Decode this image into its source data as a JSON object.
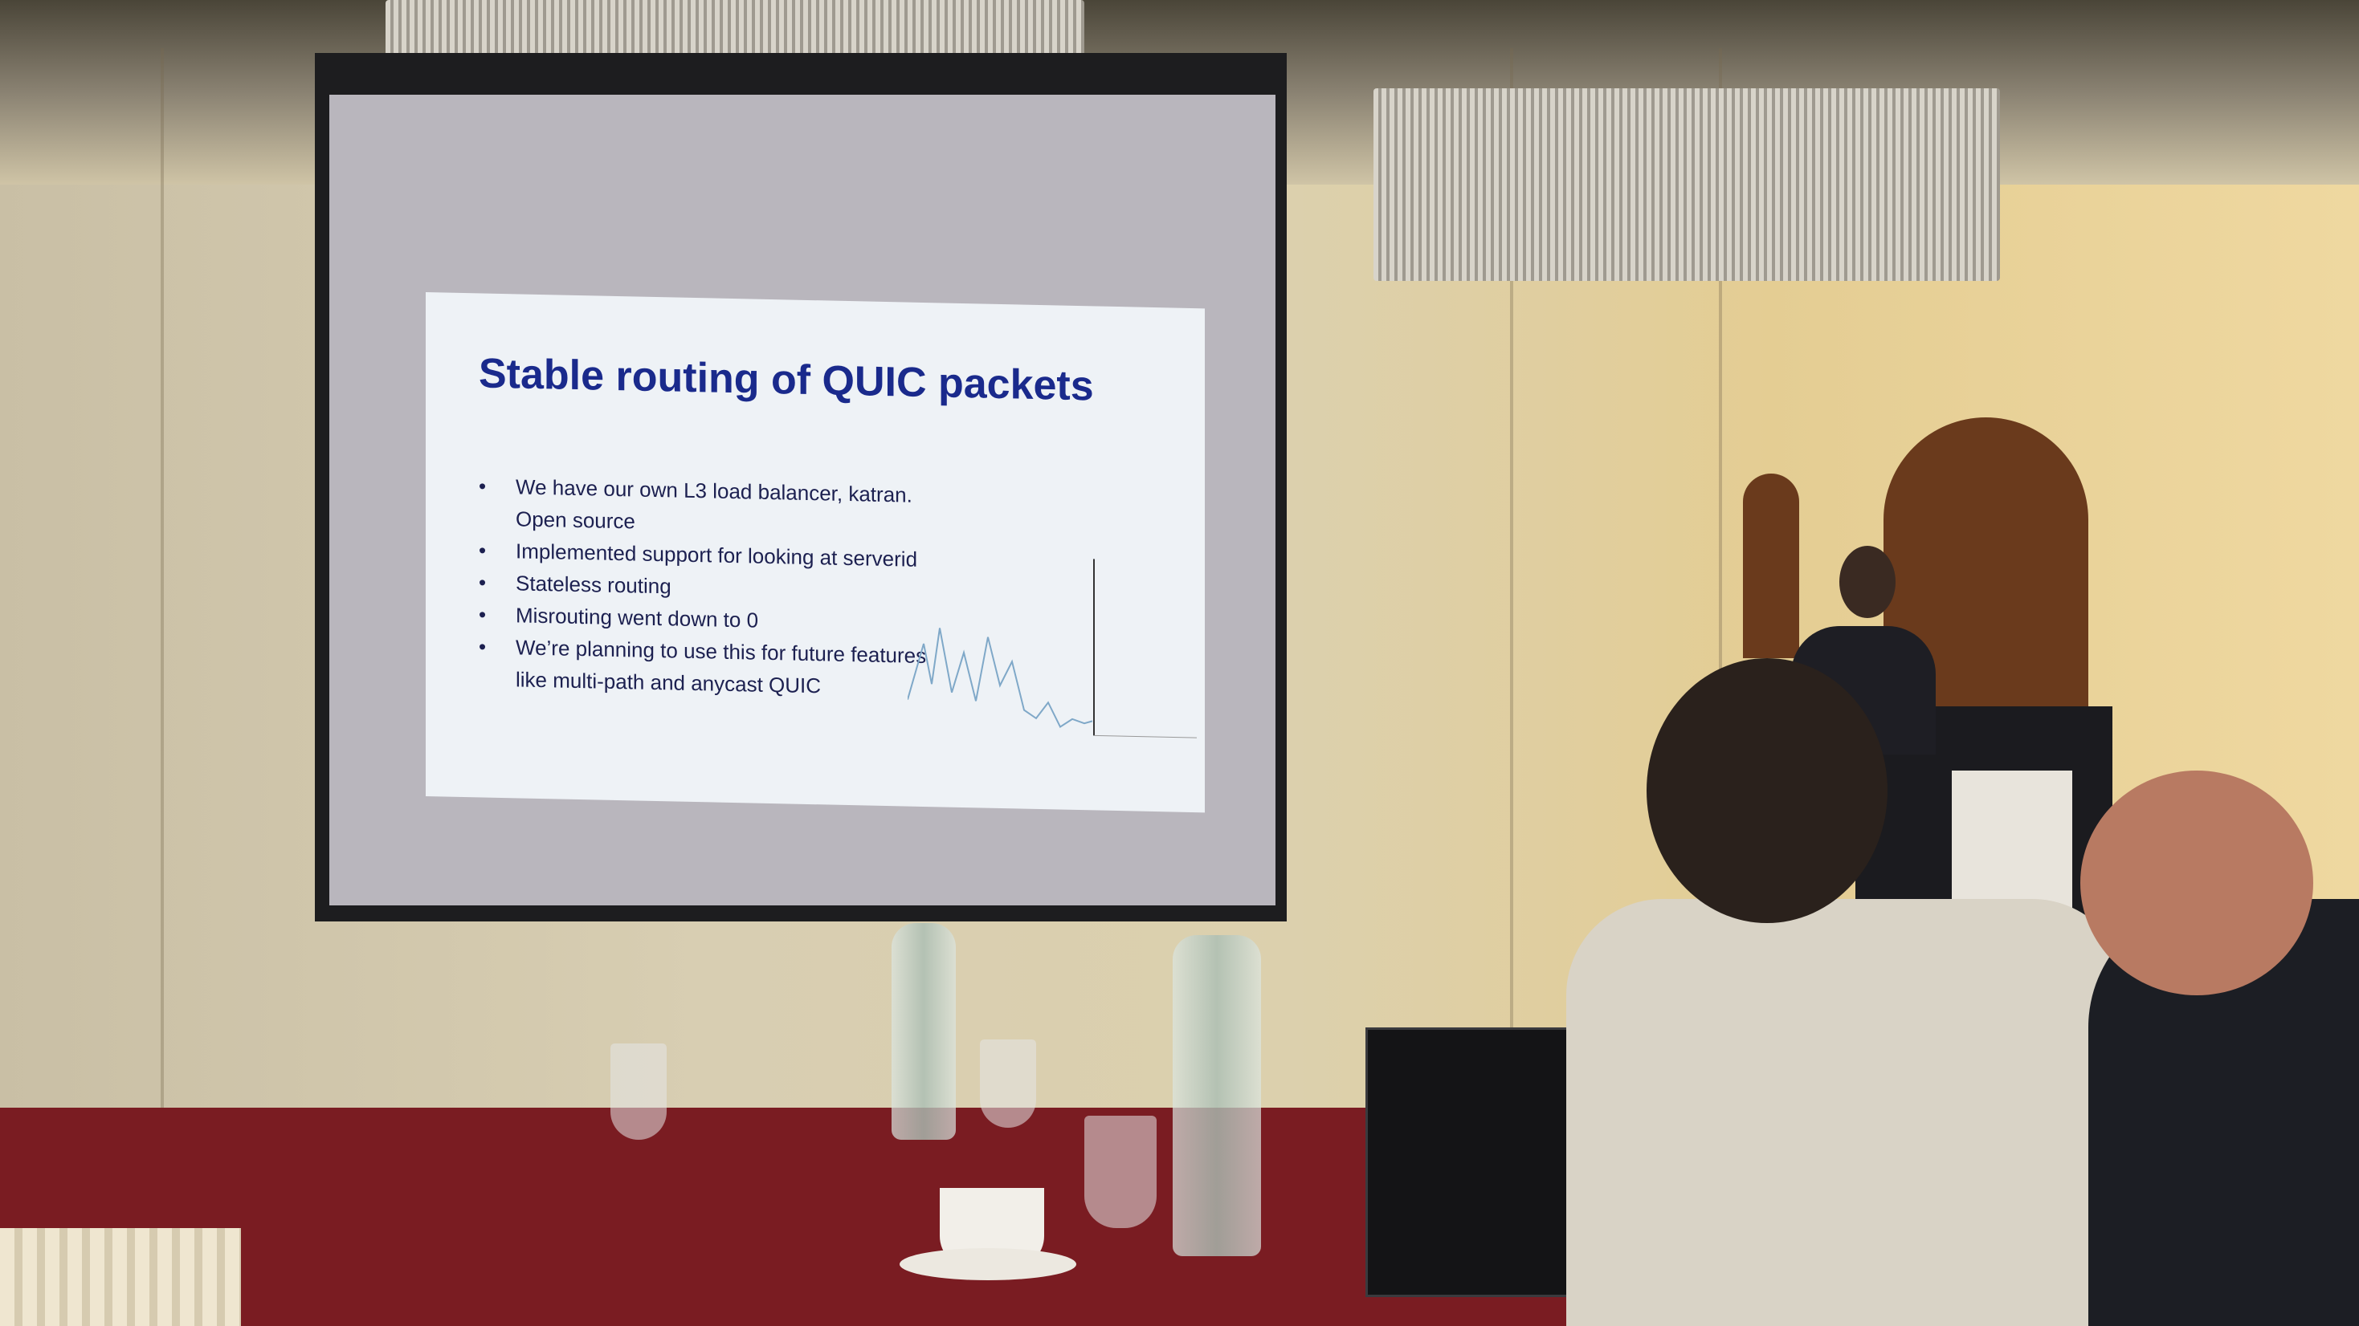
{
  "slide": {
    "title": "Stable routing of QUIC packets",
    "bullets": [
      "We have our own L3 load balancer, katran. Open source",
      "Implemented support for looking at serverid",
      "Stateless routing",
      "Misrouting went down to 0",
      "We’re planning to use this for future features like multi-path and anycast QUIC"
    ]
  },
  "colors": {
    "slide_title": "#1a2a8c",
    "tablecloth": "#7a1c22",
    "wall": "#d8ceb2"
  },
  "scene": {
    "objects": [
      "projector-screen",
      "chandelier",
      "podium",
      "speaker",
      "attendee",
      "laptop",
      "water-bottle",
      "wine-glass",
      "coffee-cup"
    ]
  }
}
